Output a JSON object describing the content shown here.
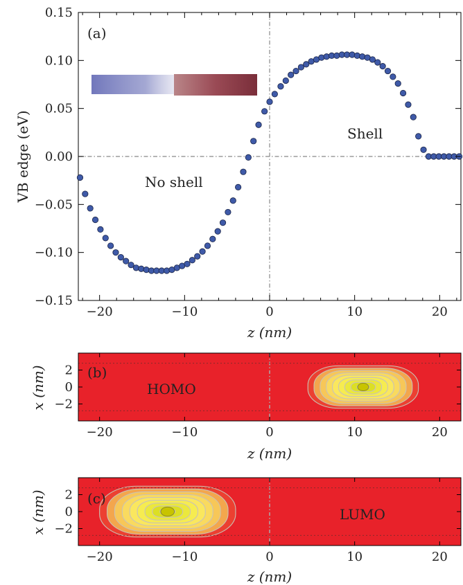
{
  "chart_data": [
    {
      "type": "scatter",
      "panel_label": "(a)",
      "xlabel": "z (nm)",
      "ylabel": "VB edge (eV)",
      "xlim": [
        -22.5,
        22.5
      ],
      "ylim": [
        -0.15,
        0.15
      ],
      "xticks": [
        -20,
        -10,
        0,
        10,
        20
      ],
      "xtick_labels": [
        "−20",
        "−10",
        "0",
        "10",
        "20"
      ],
      "yticks": [
        -0.15,
        -0.1,
        -0.05,
        0.0,
        0.05,
        0.1,
        0.15
      ],
      "ytick_labels": [
        "−0.15",
        "−0.10",
        "−0.05",
        "0.00",
        "0.05",
        "0.10",
        "0.15"
      ],
      "annotations": [
        "No shell",
        "Shell"
      ],
      "reference_lines": {
        "x": 0,
        "y": 0
      },
      "marker_color": "#3f5aa8",
      "series": [
        {
          "x": [
            -22.3,
            -21.7,
            -21.1,
            -20.5,
            -19.9,
            -19.3,
            -18.7,
            -18.1,
            -17.5,
            -16.9,
            -16.3,
            -15.7,
            -15.1,
            -14.5,
            -13.9,
            -13.3,
            -12.7,
            -12.1,
            -11.5,
            -10.9,
            -10.3,
            -9.7,
            -9.1,
            -8.5,
            -7.9,
            -7.3,
            -6.7,
            -6.1,
            -5.5,
            -4.9,
            -4.3,
            -3.7,
            -3.1,
            -2.5,
            -1.9,
            -1.3,
            -0.6,
            0.0,
            0.6,
            1.3,
            1.9,
            2.5,
            3.1,
            3.7,
            4.3,
            4.9,
            5.5,
            6.1,
            6.7,
            7.3,
            7.9,
            8.5,
            9.1,
            9.7,
            10.3,
            10.9,
            11.5,
            12.1,
            12.7,
            13.3,
            13.9,
            14.5,
            15.1,
            15.7,
            16.3,
            16.9,
            17.5,
            18.1,
            18.7,
            19.3,
            19.9,
            20.5,
            21.1,
            21.7,
            22.3
          ],
          "y": [
            -0.022,
            -0.039,
            -0.054,
            -0.066,
            -0.076,
            -0.085,
            -0.093,
            -0.1,
            -0.105,
            -0.109,
            -0.113,
            -0.116,
            -0.117,
            -0.118,
            -0.119,
            -0.119,
            -0.119,
            -0.119,
            -0.118,
            -0.116,
            -0.114,
            -0.112,
            -0.108,
            -0.104,
            -0.099,
            -0.093,
            -0.086,
            -0.078,
            -0.069,
            -0.058,
            -0.046,
            -0.032,
            -0.016,
            -0.001,
            0.016,
            0.033,
            0.047,
            0.057,
            0.065,
            0.073,
            0.079,
            0.085,
            0.089,
            0.093,
            0.096,
            0.099,
            0.101,
            0.103,
            0.104,
            0.105,
            0.105,
            0.106,
            0.106,
            0.106,
            0.105,
            0.104,
            0.103,
            0.101,
            0.098,
            0.094,
            0.089,
            0.083,
            0.076,
            0.066,
            0.054,
            0.041,
            0.021,
            0.007,
            0.0,
            0.0,
            0.0,
            0.0,
            0.0,
            0.0,
            0.0
          ]
        }
      ]
    },
    {
      "type": "heatmap",
      "panel_label": "(b)",
      "xlabel": "z (nm)",
      "ylabel": "x (nm)",
      "xlim": [
        -22.5,
        22.5
      ],
      "ylim": [
        -4,
        4
      ],
      "xticks": [
        -20,
        -10,
        0,
        10,
        20
      ],
      "xtick_labels": [
        "−20",
        "−10",
        "0",
        "10",
        "20"
      ],
      "yticks": [
        2,
        0,
        -2
      ],
      "ytick_labels": [
        "2",
        "0",
        "−2"
      ],
      "state_label": "HOMO",
      "peak": {
        "z": 11,
        "x": 0,
        "z_halfwidth": 6.5,
        "x_halfwidth": 2.5
      },
      "background_color": "#e8222a"
    },
    {
      "type": "heatmap",
      "panel_label": "(c)",
      "xlabel": "z (nm)",
      "ylabel": "x (nm)",
      "xlim": [
        -22.5,
        22.5
      ],
      "ylim": [
        -4,
        4
      ],
      "xticks": [
        -20,
        -10,
        0,
        10,
        20
      ],
      "xtick_labels": [
        "−20",
        "−10",
        "0",
        "10",
        "20"
      ],
      "yticks": [
        2,
        0,
        -2
      ],
      "ytick_labels": [
        "2",
        "0",
        "−2"
      ],
      "state_label": "LUMO",
      "peak": {
        "z": -12,
        "x": 0,
        "z_halfwidth": 8,
        "x_halfwidth": 3
      },
      "background_color": "#e8222a"
    }
  ]
}
